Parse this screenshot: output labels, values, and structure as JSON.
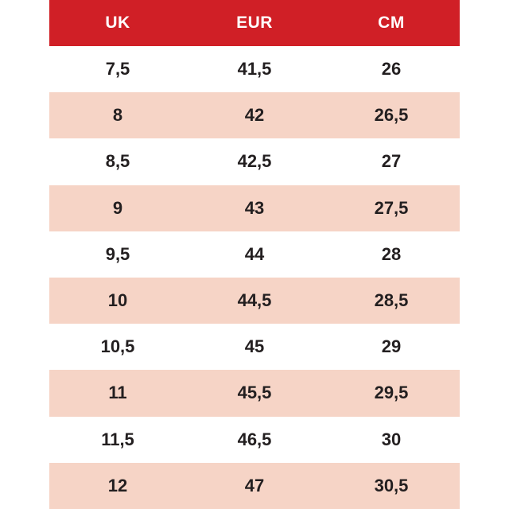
{
  "chart_data": {
    "type": "table",
    "columns": [
      "UK",
      "EUR",
      "CM"
    ],
    "rows": [
      [
        "7,5",
        "41,5",
        "26"
      ],
      [
        "8",
        "42",
        "26,5"
      ],
      [
        "8,5",
        "42,5",
        "27"
      ],
      [
        "9",
        "43",
        "27,5"
      ],
      [
        "9,5",
        "44",
        "28"
      ],
      [
        "10",
        "44,5",
        "28,5"
      ],
      [
        "10,5",
        "45",
        "29"
      ],
      [
        "11",
        "45,5",
        "29,5"
      ],
      [
        "11,5",
        "46,5",
        "30"
      ],
      [
        "12",
        "47",
        "30,5"
      ]
    ],
    "layout": {
      "header_position": "top",
      "row_striping": "even-rows-shaded",
      "text_align": "center"
    }
  },
  "colors": {
    "header_bg": "#d01f26",
    "header_text": "#ffffff",
    "row_bg": "#ffffff",
    "row_alt_bg": "#f6d4c6",
    "cell_text": "#231f20"
  }
}
